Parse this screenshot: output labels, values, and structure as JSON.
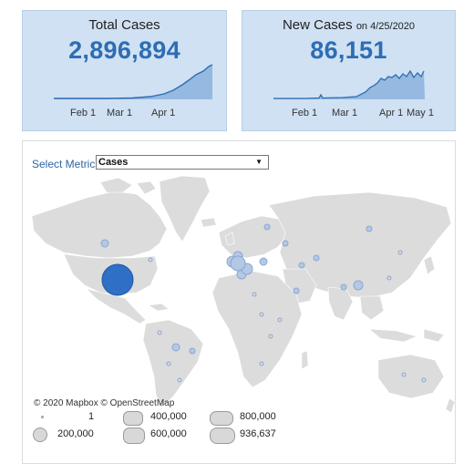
{
  "total_card": {
    "title": "Total Cases",
    "value": "2,896,894",
    "ticks": [
      "Feb 1",
      "Mar 1",
      "Apr 1"
    ]
  },
  "new_card": {
    "title": "New Cases",
    "date_note": "on 4/25/2020",
    "value": "86,151",
    "ticks": [
      "Feb 1",
      "Mar 1",
      "Apr 1",
      "May 1"
    ]
  },
  "map": {
    "select_label": "Select Metric",
    "select_value": "Cases",
    "credit": "© 2020 Mapbox © OpenStreetMap",
    "legend": [
      "1",
      "200,000",
      "400,000",
      "600,000",
      "800,000",
      "936,637"
    ]
  },
  "colors": {
    "card_bg": "#cfe1f3",
    "accent": "#2e6db3",
    "land": "#dcdcdc",
    "bubble_major": "#2f6fc6",
    "bubble_minor": "#b4c8e6"
  }
}
